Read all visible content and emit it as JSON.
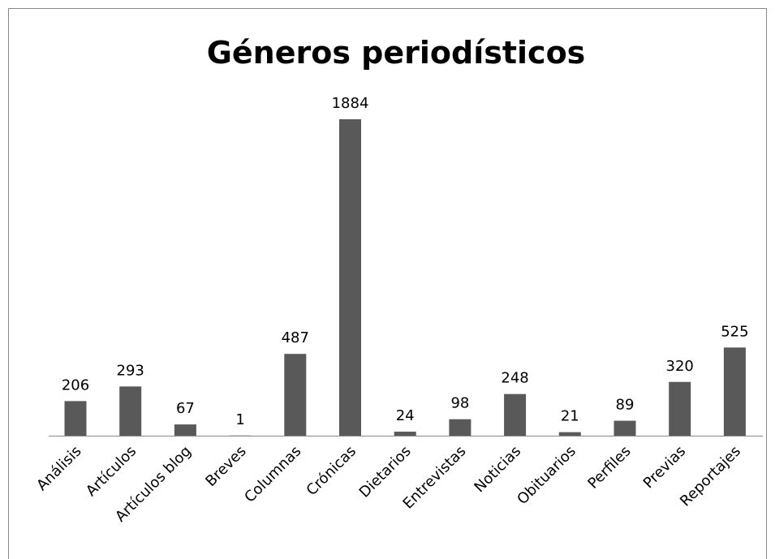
{
  "chart_data": {
    "type": "bar",
    "title": "Géneros periodísticos",
    "categories": [
      "Análisis",
      "Artículos",
      "Artículos blog",
      "Breves",
      "Columnas",
      "Crónicas",
      "Dietarios",
      "Entrevistas",
      "Noticias",
      "Obituarios",
      "Perfiles",
      "Previas",
      "Reportajes"
    ],
    "values": [
      206,
      293,
      67,
      1,
      487,
      1884,
      24,
      98,
      248,
      21,
      89,
      320,
      525
    ],
    "color": "#595959"
  }
}
